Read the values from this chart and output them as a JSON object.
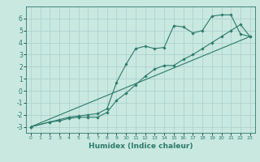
{
  "xlabel": "Humidex (Indice chaleur)",
  "bg_color": "#c8e8e0",
  "line_color": "#2d7a6a",
  "grid_color": "#aacfca",
  "xlim": [
    -0.5,
    23.5
  ],
  "ylim": [
    -3.5,
    7.0
  ],
  "yticks": [
    -3,
    -2,
    -1,
    0,
    1,
    2,
    3,
    4,
    5,
    6
  ],
  "xticks": [
    0,
    1,
    2,
    3,
    4,
    5,
    6,
    7,
    8,
    9,
    10,
    11,
    12,
    13,
    14,
    15,
    16,
    17,
    18,
    19,
    20,
    21,
    22,
    23
  ],
  "line1_x": [
    0,
    2,
    3,
    4,
    5,
    6,
    7,
    8,
    9,
    10,
    11,
    12,
    13,
    14,
    15,
    16,
    17,
    18,
    19,
    20,
    21,
    22,
    23
  ],
  "line1_y": [
    -3.0,
    -2.6,
    -2.5,
    -2.3,
    -2.2,
    -2.2,
    -2.2,
    -1.8,
    -0.8,
    -0.2,
    0.5,
    1.2,
    1.8,
    2.1,
    2.1,
    2.6,
    3.0,
    3.5,
    4.0,
    4.5,
    5.0,
    5.5,
    4.5
  ],
  "line2_x": [
    0,
    2,
    3,
    4,
    5,
    6,
    7,
    8,
    9,
    10,
    11,
    12,
    13,
    14,
    15,
    16,
    17,
    18,
    19,
    20,
    21,
    22,
    23
  ],
  "line2_y": [
    -3.0,
    -2.6,
    -2.4,
    -2.2,
    -2.1,
    -2.0,
    -1.9,
    -1.5,
    0.7,
    2.2,
    3.5,
    3.7,
    3.5,
    3.6,
    5.4,
    5.3,
    4.8,
    5.0,
    6.2,
    6.3,
    6.3,
    4.7,
    4.5
  ],
  "line3_x": [
    0,
    23
  ],
  "line3_y": [
    -3.0,
    4.5
  ],
  "xlabel_fontsize": 6.5,
  "xlabel_fontweight": "bold",
  "ytick_fontsize": 5.5,
  "xtick_fontsize": 4.5,
  "marker": "D",
  "markersize": 1.8,
  "linewidth": 0.8
}
